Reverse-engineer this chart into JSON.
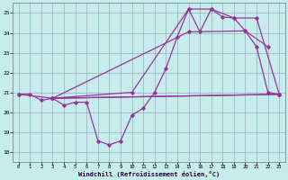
{
  "xlabel": "Windchill (Refroidissement éolien,°C)",
  "xlim": [
    -0.5,
    23.5
  ],
  "ylim": [
    17.5,
    25.5
  ],
  "yticks": [
    18,
    19,
    20,
    21,
    22,
    23,
    24,
    25
  ],
  "xticks": [
    0,
    1,
    2,
    3,
    4,
    5,
    6,
    7,
    8,
    9,
    10,
    11,
    12,
    13,
    14,
    15,
    16,
    17,
    18,
    19,
    20,
    21,
    22,
    23
  ],
  "bg_color": "#c6ecec",
  "line_color": "#993399",
  "grid_color": "#99aabb",
  "line1_x": [
    0,
    1,
    2,
    3,
    4,
    5,
    6,
    7,
    8,
    9,
    10,
    11,
    12,
    13,
    14,
    15,
    16,
    17,
    18,
    19,
    20,
    21,
    22,
    23
  ],
  "line1_y": [
    20.9,
    20.9,
    20.6,
    20.7,
    20.35,
    20.5,
    20.5,
    18.55,
    18.35,
    18.55,
    19.85,
    20.2,
    21.0,
    22.2,
    23.8,
    25.2,
    24.05,
    25.2,
    24.8,
    24.75,
    24.1,
    23.3,
    21.0,
    20.9
  ],
  "line2_x": [
    0,
    3,
    23
  ],
  "line2_y": [
    20.9,
    20.7,
    20.9
  ],
  "line3_x": [
    3,
    23
  ],
  "line3_y": [
    20.7,
    20.9
  ],
  "line4_x": [
    3,
    10,
    15,
    17,
    19,
    21,
    23
  ],
  "line4_y": [
    20.7,
    21.0,
    25.2,
    25.2,
    24.75,
    24.75,
    20.9
  ],
  "line5_x": [
    3,
    15,
    20,
    22
  ],
  "line5_y": [
    20.7,
    24.05,
    24.1,
    23.3
  ]
}
